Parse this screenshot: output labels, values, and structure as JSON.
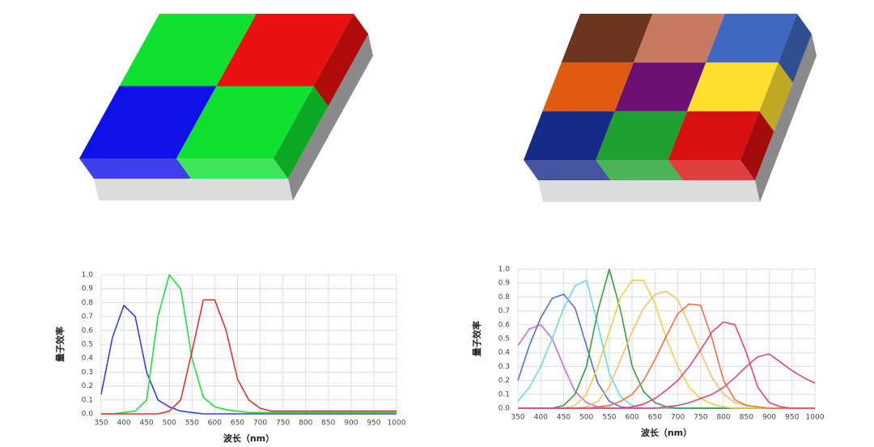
{
  "chart_data": [
    {
      "type": "line",
      "ylabel": "量子效率",
      "xlabel": "波长（nm）",
      "grid": true,
      "xlim": [
        350,
        1000
      ],
      "ylim": [
        0,
        1
      ],
      "xticks": [
        350,
        400,
        450,
        500,
        550,
        600,
        650,
        700,
        750,
        800,
        850,
        900,
        950,
        1000
      ],
      "yticks": [
        {
          "value": 0,
          "label": "0.0"
        },
        0.1,
        0.2,
        0.3,
        0.4,
        0.5,
        0.6,
        0.7,
        0.8,
        0.9,
        {
          "value": 1,
          "label": "1.0"
        }
      ],
      "x": [
        350,
        375,
        400,
        425,
        450,
        475,
        500,
        525,
        550,
        575,
        600,
        625,
        650,
        675,
        700,
        725,
        750,
        775,
        800,
        825,
        850,
        875,
        900,
        925,
        950,
        975,
        1000
      ],
      "series": [
        {
          "color": "#3040e8",
          "values": [
            0.14,
            0.55,
            0.78,
            0.7,
            0.3,
            0.1,
            0.05,
            0.02,
            0.01,
            0,
            0,
            0,
            0,
            0,
            0,
            0,
            0,
            0,
            0,
            0,
            0,
            0,
            0,
            0,
            0,
            0,
            0
          ]
        },
        {
          "color": "#20e040",
          "values": [
            0,
            0,
            0.01,
            0.02,
            0.1,
            0.7,
            1.0,
            0.9,
            0.4,
            0.12,
            0.05,
            0.03,
            0.02,
            0.01,
            0.01,
            0.01,
            0.01,
            0.01,
            0.01,
            0.01,
            0.01,
            0.01,
            0.01,
            0.01,
            0.01,
            0.01,
            0.01
          ]
        },
        {
          "color": "#e83030",
          "values": [
            0,
            0,
            0,
            0,
            0,
            0,
            0.02,
            0.1,
            0.45,
            0.82,
            0.82,
            0.6,
            0.25,
            0.1,
            0.04,
            0.02,
            0.02,
            0.02,
            0.02,
            0.02,
            0.02,
            0.02,
            0.02,
            0.02,
            0.02,
            0.02,
            0.02
          ]
        }
      ]
    },
    {
      "type": "line",
      "ylabel": "量子效率",
      "xlabel": "波长（nm）",
      "grid": true,
      "xlim": [
        350,
        1000
      ],
      "ylim": [
        0,
        1
      ],
      "xticks": [
        350,
        400,
        450,
        500,
        550,
        600,
        650,
        700,
        750,
        800,
        850,
        900,
        950,
        1000
      ],
      "yticks": [
        {
          "value": 0,
          "label": "0.0"
        },
        0.1,
        0.2,
        0.3,
        0.4,
        0.5,
        0.6,
        0.7,
        0.8,
        0.9,
        {
          "value": 1,
          "label": "1.0"
        }
      ],
      "x": [
        350,
        375,
        400,
        425,
        450,
        475,
        500,
        525,
        550,
        575,
        600,
        625,
        650,
        675,
        700,
        725,
        750,
        775,
        800,
        825,
        850,
        875,
        900,
        925,
        950,
        975,
        1000
      ],
      "series": [
        {
          "color": "#c070e8",
          "values": [
            0.45,
            0.57,
            0.6,
            0.5,
            0.3,
            0.12,
            0.04,
            0.01,
            0,
            0,
            0,
            0,
            0,
            0,
            0,
            0,
            0,
            0,
            0,
            0,
            0,
            0,
            0,
            0,
            0,
            0,
            0
          ]
        },
        {
          "color": "#5070e0",
          "values": [
            0.2,
            0.45,
            0.65,
            0.79,
            0.82,
            0.72,
            0.45,
            0.18,
            0.05,
            0.01,
            0,
            0,
            0,
            0,
            0,
            0,
            0,
            0,
            0,
            0,
            0,
            0,
            0,
            0,
            0,
            0,
            0
          ]
        },
        {
          "color": "#60e0d8",
          "values": [
            0.05,
            0.15,
            0.3,
            0.5,
            0.72,
            0.88,
            0.92,
            0.6,
            0.25,
            0.08,
            0.02,
            0,
            0,
            0,
            0,
            0,
            0,
            0,
            0,
            0,
            0,
            0,
            0,
            0,
            0,
            0,
            0
          ]
        },
        {
          "color": "#30a040",
          "values": [
            0,
            0,
            0,
            0,
            0.02,
            0.1,
            0.3,
            0.7,
            1.0,
            0.7,
            0.3,
            0.12,
            0.04,
            0.01,
            0,
            0,
            0,
            0,
            0,
            0,
            0,
            0,
            0,
            0,
            0,
            0,
            0
          ]
        },
        {
          "color": "#f0d040",
          "values": [
            0,
            0,
            0,
            0,
            0,
            0.02,
            0.1,
            0.3,
            0.55,
            0.8,
            0.92,
            0.92,
            0.75,
            0.5,
            0.3,
            0.15,
            0.07,
            0.03,
            0.01,
            0,
            0,
            0,
            0,
            0,
            0,
            0,
            0
          ]
        },
        {
          "color": "#f8c060",
          "values": [
            0,
            0,
            0,
            0,
            0,
            0,
            0.01,
            0.05,
            0.15,
            0.35,
            0.55,
            0.72,
            0.82,
            0.84,
            0.78,
            0.6,
            0.4,
            0.22,
            0.1,
            0.04,
            0.02,
            0.01,
            0,
            0,
            0,
            0,
            0
          ]
        },
        {
          "color": "#f07040",
          "values": [
            0,
            0,
            0,
            0,
            0,
            0,
            0,
            0.01,
            0.02,
            0.05,
            0.1,
            0.2,
            0.35,
            0.52,
            0.68,
            0.75,
            0.74,
            0.5,
            0.2,
            0.06,
            0.02,
            0.01,
            0,
            0,
            0,
            0,
            0
          ]
        },
        {
          "color": "#f04070",
          "values": [
            0,
            0,
            0,
            0,
            0,
            0,
            0,
            0,
            0,
            0,
            0.01,
            0.03,
            0.07,
            0.13,
            0.2,
            0.3,
            0.42,
            0.55,
            0.62,
            0.6,
            0.4,
            0.15,
            0.04,
            0.01,
            0,
            0,
            0
          ]
        },
        {
          "color": "#e04878",
          "values": [
            0,
            0,
            0,
            0,
            0,
            0,
            0,
            0,
            0,
            0,
            0,
            0,
            0,
            0.01,
            0.02,
            0.04,
            0.07,
            0.1,
            0.15,
            0.22,
            0.3,
            0.37,
            0.39,
            0.33,
            0.27,
            0.22,
            0.18
          ]
        }
      ]
    }
  ]
}
